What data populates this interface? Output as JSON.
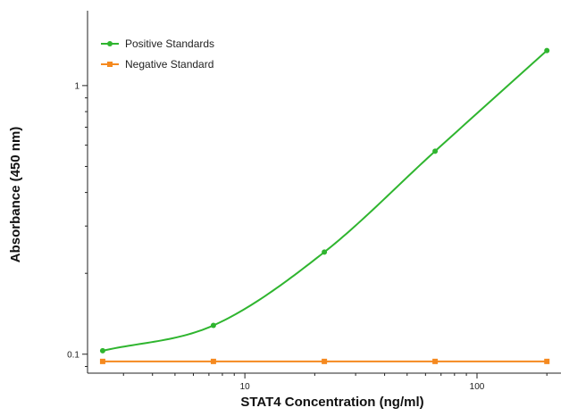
{
  "chart_data": {
    "type": "line",
    "title": "",
    "xlabel": "STAT4 Concentration (ng/ml)",
    "ylabel": "Absorbance (450 nm)",
    "xscale": "log",
    "yscale": "log",
    "xlim": [
      2.1,
      230
    ],
    "ylim": [
      0.085,
      1.9
    ],
    "xticks": [
      10,
      100
    ],
    "xtick_labels": [
      "10",
      "100"
    ],
    "yticks": [
      0.1,
      1
    ],
    "ytick_labels": [
      "0.1",
      "1"
    ],
    "grid": false,
    "legend_position": "top-left",
    "series": [
      {
        "name": "Positive Standards",
        "color": "#2fb52f",
        "marker": "circle",
        "x": [
          2.44,
          7.32,
          22,
          66,
          200
        ],
        "y": [
          0.103,
          0.128,
          0.24,
          0.57,
          1.35
        ],
        "curve_fit": true
      },
      {
        "name": "Negative Standard",
        "color": "#f5891f",
        "marker": "square",
        "x": [
          2.44,
          7.32,
          22,
          66,
          200
        ],
        "y": [
          0.094,
          0.094,
          0.094,
          0.094,
          0.094
        ],
        "curve_fit": false
      }
    ]
  }
}
